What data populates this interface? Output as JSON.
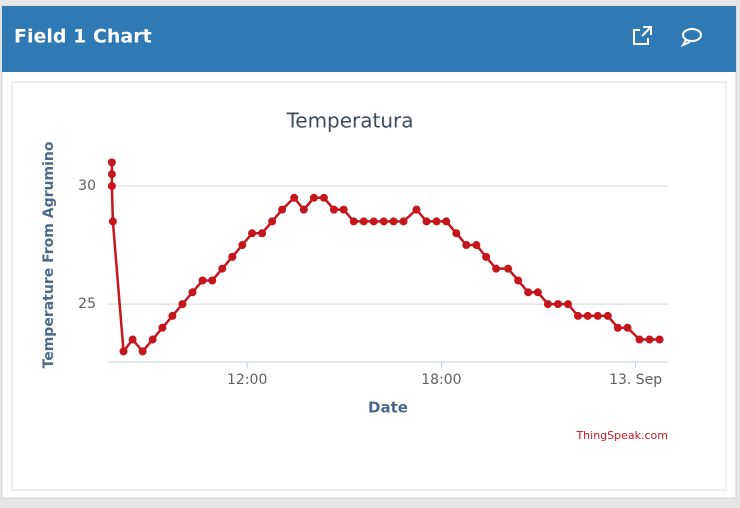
{
  "header": {
    "title": "Field 1 Chart"
  },
  "chart_data": {
    "type": "line",
    "title": "Temperatura",
    "x_label": "Date",
    "y_label": "Temperature From Agrumino",
    "credit": "ThingSpeak.com",
    "color": "#c4161c",
    "grid": true,
    "x": [
      7.82,
      7.82,
      7.82,
      7.85,
      8.18,
      8.46,
      8.77,
      9.08,
      9.38,
      9.69,
      10.0,
      10.31,
      10.62,
      10.92,
      11.23,
      11.54,
      11.85,
      12.15,
      12.46,
      12.77,
      13.08,
      13.45,
      13.75,
      14.06,
      14.37,
      14.68,
      14.98,
      15.29,
      15.6,
      15.91,
      16.22,
      16.52,
      16.83,
      17.23,
      17.54,
      17.85,
      18.15,
      18.46,
      18.77,
      19.08,
      19.38,
      19.69,
      20.06,
      20.37,
      20.68,
      20.98,
      21.29,
      21.6,
      21.91,
      22.22,
      22.52,
      22.83,
      23.14,
      23.45,
      23.75,
      24.12,
      24.43,
      24.74
    ],
    "values": [
      31,
      30.5,
      30,
      28.5,
      23,
      23.5,
      23,
      23.5,
      24,
      24.5,
      25,
      25.5,
      26,
      26,
      26.5,
      27,
      27.5,
      28,
      28,
      28.5,
      29,
      29.5,
      29,
      29.5,
      29.5,
      29,
      29,
      28.5,
      28.5,
      28.5,
      28.5,
      28.5,
      28.5,
      29,
      28.5,
      28.5,
      28.5,
      28,
      27.5,
      27.5,
      27,
      26.5,
      26.5,
      26,
      25.5,
      25.5,
      25,
      25,
      25,
      24.5,
      24.5,
      24.5,
      24.5,
      24,
      24,
      23.5,
      23.5,
      23.5
    ],
    "xlim": [
      7.7,
      25.0
    ],
    "ylim": [
      22.55,
      31.1
    ],
    "xticks": [
      {
        "value": 12,
        "label": "12:00"
      },
      {
        "value": 18,
        "label": "18:00"
      },
      {
        "value": 24,
        "label": "13. Sep"
      }
    ],
    "yticks": [
      25,
      30
    ]
  }
}
